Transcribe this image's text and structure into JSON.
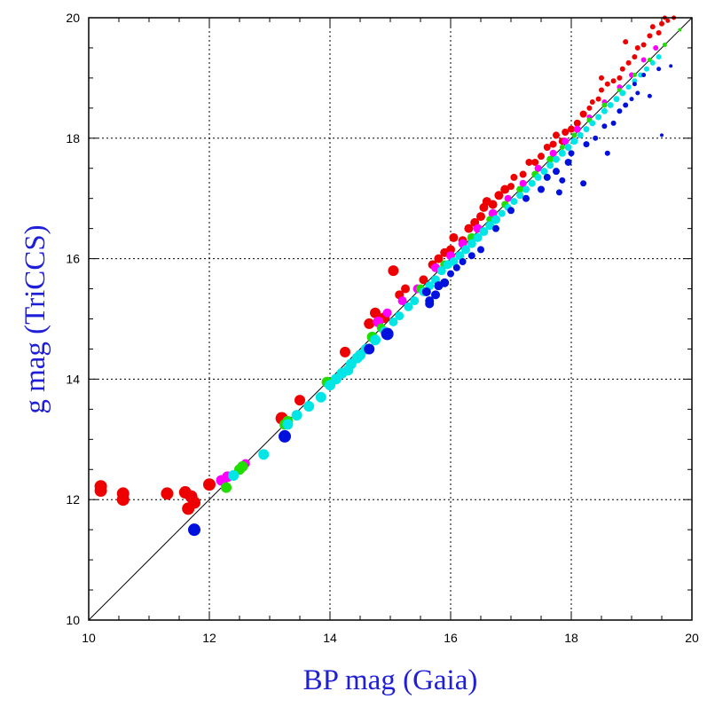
{
  "chart_data": {
    "type": "scatter",
    "xlabel": "BP mag (Gaia)",
    "ylabel": "g mag (TriCCS)",
    "xlim": [
      10,
      20
    ],
    "ylim": [
      10,
      20
    ],
    "xticks": [
      10,
      12,
      14,
      16,
      18,
      20
    ],
    "yticks": [
      10,
      12,
      14,
      16,
      18,
      20
    ],
    "x_tick_labels": [
      "10",
      "12",
      "14",
      "16",
      "18",
      "20"
    ],
    "y_tick_labels": [
      "10",
      "12",
      "14",
      "16",
      "18",
      "20"
    ],
    "grid": true,
    "reference_line": {
      "x": [
        10,
        20
      ],
      "y": [
        10,
        20
      ],
      "color": "#000000"
    },
    "colors": {
      "red": "#ee0000",
      "magenta": "#ff00ff",
      "green": "#22dd00",
      "cyan": "#00e6e6",
      "blue": "#0010dd",
      "axis_title": "#1f1fd8"
    },
    "series": [
      {
        "color_key": "red",
        "points": [
          [
            10.2,
            12.15,
            7
          ],
          [
            10.2,
            12.22,
            7
          ],
          [
            10.57,
            12.0,
            7
          ],
          [
            10.57,
            12.1,
            7
          ],
          [
            11.3,
            12.1,
            7
          ],
          [
            11.6,
            12.12,
            7
          ],
          [
            11.7,
            12.05,
            7
          ],
          [
            11.65,
            11.85,
            7
          ],
          [
            11.75,
            11.95,
            7
          ],
          [
            12.0,
            12.25,
            7
          ],
          [
            13.2,
            13.35,
            7
          ],
          [
            13.5,
            13.65,
            6
          ],
          [
            14.25,
            14.45,
            6
          ],
          [
            14.65,
            14.92,
            6
          ],
          [
            14.75,
            15.1,
            6
          ],
          [
            14.9,
            15.02,
            6
          ],
          [
            15.05,
            15.8,
            6
          ],
          [
            15.15,
            15.4,
            5
          ],
          [
            15.25,
            15.5,
            5
          ],
          [
            15.55,
            15.65,
            5
          ],
          [
            15.7,
            15.9,
            5
          ],
          [
            15.8,
            16.0,
            5
          ],
          [
            15.9,
            16.1,
            5
          ],
          [
            16.0,
            16.15,
            5
          ],
          [
            16.05,
            16.35,
            5
          ],
          [
            16.2,
            16.3,
            5
          ],
          [
            16.3,
            16.5,
            5
          ],
          [
            16.4,
            16.6,
            5
          ],
          [
            16.5,
            16.7,
            5
          ],
          [
            16.55,
            16.85,
            5
          ],
          [
            16.6,
            16.95,
            5
          ],
          [
            16.7,
            16.9,
            5
          ],
          [
            16.8,
            17.05,
            5
          ],
          [
            16.9,
            17.15,
            5
          ],
          [
            17.0,
            17.2,
            4
          ],
          [
            17.05,
            17.35,
            4
          ],
          [
            17.2,
            17.4,
            4
          ],
          [
            17.3,
            17.6,
            4
          ],
          [
            17.4,
            17.6,
            4
          ],
          [
            17.5,
            17.7,
            4
          ],
          [
            17.6,
            17.85,
            4
          ],
          [
            17.7,
            17.9,
            4
          ],
          [
            17.75,
            18.05,
            4
          ],
          [
            17.9,
            18.1,
            4
          ],
          [
            18.0,
            18.15,
            4
          ],
          [
            18.1,
            18.25,
            4
          ],
          [
            18.2,
            18.4,
            4
          ],
          [
            18.3,
            18.5,
            3
          ],
          [
            18.35,
            18.6,
            3
          ],
          [
            18.45,
            18.65,
            3
          ],
          [
            18.5,
            18.8,
            3
          ],
          [
            18.6,
            18.9,
            3
          ],
          [
            18.7,
            18.95,
            3
          ],
          [
            18.8,
            19.0,
            3
          ],
          [
            18.85,
            19.15,
            3
          ],
          [
            18.95,
            19.25,
            3
          ],
          [
            19.05,
            19.35,
            3
          ],
          [
            19.1,
            19.5,
            3
          ],
          [
            19.2,
            19.55,
            3
          ],
          [
            19.3,
            19.7,
            3
          ],
          [
            19.35,
            19.85,
            3
          ],
          [
            19.45,
            19.75,
            3
          ],
          [
            19.5,
            19.9,
            3
          ],
          [
            19.55,
            20.0,
            2.5
          ],
          [
            19.6,
            19.95,
            2.5
          ],
          [
            19.7,
            20.0,
            2.5
          ],
          [
            18.5,
            19.0,
            3
          ],
          [
            18.9,
            19.6,
            3
          ],
          [
            17.85,
            17.95,
            4
          ]
        ]
      },
      {
        "color_key": "magenta",
        "points": [
          [
            12.2,
            12.32,
            6
          ],
          [
            12.3,
            12.38,
            6
          ],
          [
            12.6,
            12.6,
            5
          ],
          [
            14.8,
            14.95,
            6
          ],
          [
            14.95,
            15.1,
            5
          ],
          [
            15.2,
            15.3,
            5
          ],
          [
            15.45,
            15.5,
            5
          ],
          [
            15.75,
            15.85,
            5
          ],
          [
            16.0,
            16.05,
            5
          ],
          [
            16.2,
            16.25,
            5
          ],
          [
            16.45,
            16.5,
            5
          ],
          [
            16.7,
            16.75,
            5
          ],
          [
            16.95,
            17.0,
            4
          ],
          [
            17.2,
            17.25,
            4
          ],
          [
            17.45,
            17.5,
            4
          ],
          [
            17.7,
            17.75,
            4
          ],
          [
            17.9,
            17.95,
            4
          ],
          [
            18.1,
            18.15,
            4
          ],
          [
            18.3,
            18.35,
            3
          ],
          [
            18.55,
            18.6,
            3
          ],
          [
            18.8,
            18.85,
            3
          ],
          [
            19.0,
            19.05,
            3
          ],
          [
            19.2,
            19.3,
            3
          ],
          [
            19.4,
            19.5,
            3
          ]
        ]
      },
      {
        "color_key": "green",
        "points": [
          [
            12.28,
            12.2,
            6
          ],
          [
            12.5,
            12.5,
            6
          ],
          [
            12.55,
            12.55,
            6
          ],
          [
            13.25,
            13.25,
            6
          ],
          [
            13.3,
            13.3,
            6
          ],
          [
            13.95,
            13.95,
            6
          ],
          [
            14.7,
            14.7,
            6
          ],
          [
            14.85,
            14.85,
            5
          ],
          [
            15.5,
            15.5,
            5
          ],
          [
            15.9,
            15.9,
            5
          ],
          [
            16.35,
            16.35,
            5
          ],
          [
            16.65,
            16.65,
            4
          ],
          [
            16.9,
            16.9,
            4
          ],
          [
            17.15,
            17.15,
            4
          ],
          [
            17.4,
            17.4,
            4
          ],
          [
            17.65,
            17.65,
            4
          ],
          [
            17.85,
            17.85,
            3
          ],
          [
            18.05,
            18.05,
            3
          ],
          [
            18.3,
            18.3,
            3
          ],
          [
            18.55,
            18.55,
            3
          ],
          [
            18.8,
            18.8,
            2.5
          ],
          [
            19.05,
            19.05,
            2.5
          ],
          [
            19.3,
            19.3,
            2.5
          ],
          [
            19.55,
            19.55,
            2.5
          ],
          [
            19.8,
            19.8,
            2
          ]
        ]
      },
      {
        "color_key": "cyan",
        "points": [
          [
            12.4,
            12.4,
            6
          ],
          [
            12.9,
            12.75,
            6
          ],
          [
            13.3,
            13.25,
            6
          ],
          [
            13.45,
            13.4,
            6
          ],
          [
            13.65,
            13.55,
            6
          ],
          [
            13.85,
            13.7,
            6
          ],
          [
            14.0,
            13.9,
            6
          ],
          [
            14.1,
            14.0,
            6
          ],
          [
            14.2,
            14.1,
            6
          ],
          [
            14.3,
            14.15,
            6
          ],
          [
            14.35,
            14.25,
            6
          ],
          [
            14.45,
            14.35,
            6
          ],
          [
            14.5,
            14.4,
            6
          ],
          [
            14.6,
            14.5,
            6
          ],
          [
            14.75,
            14.65,
            6
          ],
          [
            14.9,
            14.8,
            5
          ],
          [
            15.05,
            14.95,
            5
          ],
          [
            15.15,
            15.05,
            5
          ],
          [
            15.3,
            15.2,
            5
          ],
          [
            15.4,
            15.3,
            5
          ],
          [
            15.55,
            15.45,
            5
          ],
          [
            15.65,
            15.55,
            5
          ],
          [
            15.75,
            15.65,
            5
          ],
          [
            15.85,
            15.8,
            5
          ],
          [
            15.95,
            15.9,
            5
          ],
          [
            16.05,
            15.95,
            5
          ],
          [
            16.15,
            16.05,
            5
          ],
          [
            16.25,
            16.15,
            5
          ],
          [
            16.35,
            16.25,
            5
          ],
          [
            16.45,
            16.35,
            5
          ],
          [
            16.55,
            16.45,
            5
          ],
          [
            16.65,
            16.55,
            5
          ],
          [
            16.75,
            16.65,
            5
          ],
          [
            16.85,
            16.75,
            4
          ],
          [
            16.95,
            16.85,
            4
          ],
          [
            17.05,
            16.95,
            4
          ],
          [
            17.15,
            17.05,
            4
          ],
          [
            17.25,
            17.15,
            4
          ],
          [
            17.35,
            17.25,
            4
          ],
          [
            17.45,
            17.35,
            4
          ],
          [
            17.55,
            17.45,
            4
          ],
          [
            17.65,
            17.55,
            4
          ],
          [
            17.75,
            17.65,
            4
          ],
          [
            17.85,
            17.75,
            4
          ],
          [
            17.95,
            17.85,
            4
          ],
          [
            18.05,
            17.95,
            4
          ],
          [
            18.15,
            18.05,
            3.5
          ],
          [
            18.25,
            18.15,
            3.5
          ],
          [
            18.35,
            18.25,
            3.5
          ],
          [
            18.45,
            18.35,
            3.5
          ],
          [
            18.55,
            18.45,
            3.5
          ],
          [
            18.65,
            18.55,
            3.5
          ],
          [
            18.75,
            18.65,
            3.5
          ],
          [
            18.85,
            18.75,
            3.5
          ],
          [
            18.95,
            18.85,
            3
          ],
          [
            19.05,
            18.95,
            3
          ],
          [
            19.15,
            19.05,
            3
          ],
          [
            19.25,
            19.15,
            3
          ],
          [
            19.35,
            19.25,
            3
          ],
          [
            19.45,
            19.35,
            3
          ]
        ]
      },
      {
        "color_key": "blue",
        "points": [
          [
            11.75,
            11.5,
            7
          ],
          [
            13.25,
            13.05,
            7
          ],
          [
            14.65,
            14.5,
            6
          ],
          [
            14.95,
            14.75,
            7
          ],
          [
            15.65,
            15.25,
            5
          ],
          [
            15.65,
            15.3,
            5
          ],
          [
            15.6,
            15.45,
            5
          ],
          [
            15.75,
            15.4,
            5
          ],
          [
            15.8,
            15.55,
            5
          ],
          [
            15.9,
            15.6,
            5
          ],
          [
            16.0,
            15.75,
            4
          ],
          [
            16.1,
            15.85,
            4
          ],
          [
            16.2,
            15.95,
            4
          ],
          [
            16.35,
            16.05,
            4
          ],
          [
            16.5,
            16.15,
            4
          ],
          [
            16.75,
            16.5,
            4
          ],
          [
            17.0,
            16.8,
            4
          ],
          [
            17.25,
            17.0,
            4
          ],
          [
            17.5,
            17.15,
            4
          ],
          [
            17.6,
            17.35,
            4
          ],
          [
            17.75,
            17.45,
            4
          ],
          [
            17.8,
            17.1,
            3.5
          ],
          [
            17.85,
            17.3,
            3.5
          ],
          [
            17.95,
            17.6,
            4
          ],
          [
            18.0,
            17.75,
            3.5
          ],
          [
            18.2,
            17.25,
            3.5
          ],
          [
            18.25,
            17.9,
            3.5
          ],
          [
            18.4,
            18.0,
            3
          ],
          [
            18.55,
            18.2,
            3
          ],
          [
            18.6,
            17.75,
            3
          ],
          [
            18.7,
            18.25,
            3
          ],
          [
            18.8,
            18.45,
            3
          ],
          [
            18.9,
            18.55,
            3
          ],
          [
            19.0,
            18.65,
            2.5
          ],
          [
            19.05,
            18.9,
            2.5
          ],
          [
            19.1,
            18.75,
            2.5
          ],
          [
            19.2,
            19.05,
            2.5
          ],
          [
            19.3,
            18.7,
            2.5
          ],
          [
            19.45,
            19.15,
            2.5
          ],
          [
            19.5,
            18.05,
            2
          ],
          [
            19.65,
            19.2,
            2
          ]
        ]
      }
    ]
  }
}
